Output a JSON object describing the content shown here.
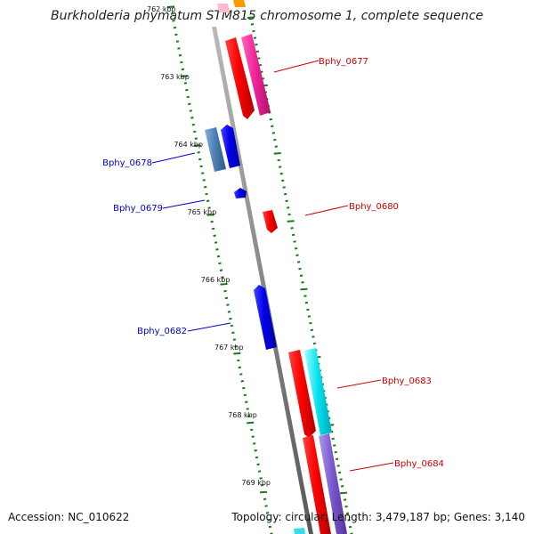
{
  "title": "Burkholderia phymatum STM815 chromosome 1, complete sequence",
  "accession_text": "Accession: NC_010622",
  "stats_text": "Topology: circular; Length: 3,479,187 bp; Genes: 3,140",
  "ticks": [
    "762 kbp",
    "763 kbp",
    "764 kbp",
    "765 kbp",
    "766 kbp",
    "767 kbp",
    "768 kbp",
    "769 kbp"
  ],
  "genes": [
    {
      "label": "Bphy_0677",
      "strand": "+",
      "color": "#cc0000"
    },
    {
      "label": "Bphy_0678",
      "strand": "-",
      "color": "#0000cc"
    },
    {
      "label": "Bphy_0679",
      "strand": "-",
      "color": "#0000cc"
    },
    {
      "label": "Bphy_0680",
      "strand": "+",
      "color": "#cc0000"
    },
    {
      "label": "Bphy_0682",
      "strand": "-",
      "color": "#0000cc"
    },
    {
      "label": "Bphy_0683",
      "strand": "+",
      "color": "#cc0000"
    },
    {
      "label": "Bphy_0684",
      "strand": "+",
      "color": "#cc0000"
    }
  ],
  "colors": {
    "backbone": "#8a8a8a",
    "tick_green": "#1a7a1a",
    "forward_gene": "#ff0000",
    "reverse_gene": "#0000ff",
    "pink_feature": "#ff3399",
    "steel_feature": "#4f86b8",
    "cyan_feature": "#00e5ee",
    "purple_feature": "#8866cc"
  }
}
